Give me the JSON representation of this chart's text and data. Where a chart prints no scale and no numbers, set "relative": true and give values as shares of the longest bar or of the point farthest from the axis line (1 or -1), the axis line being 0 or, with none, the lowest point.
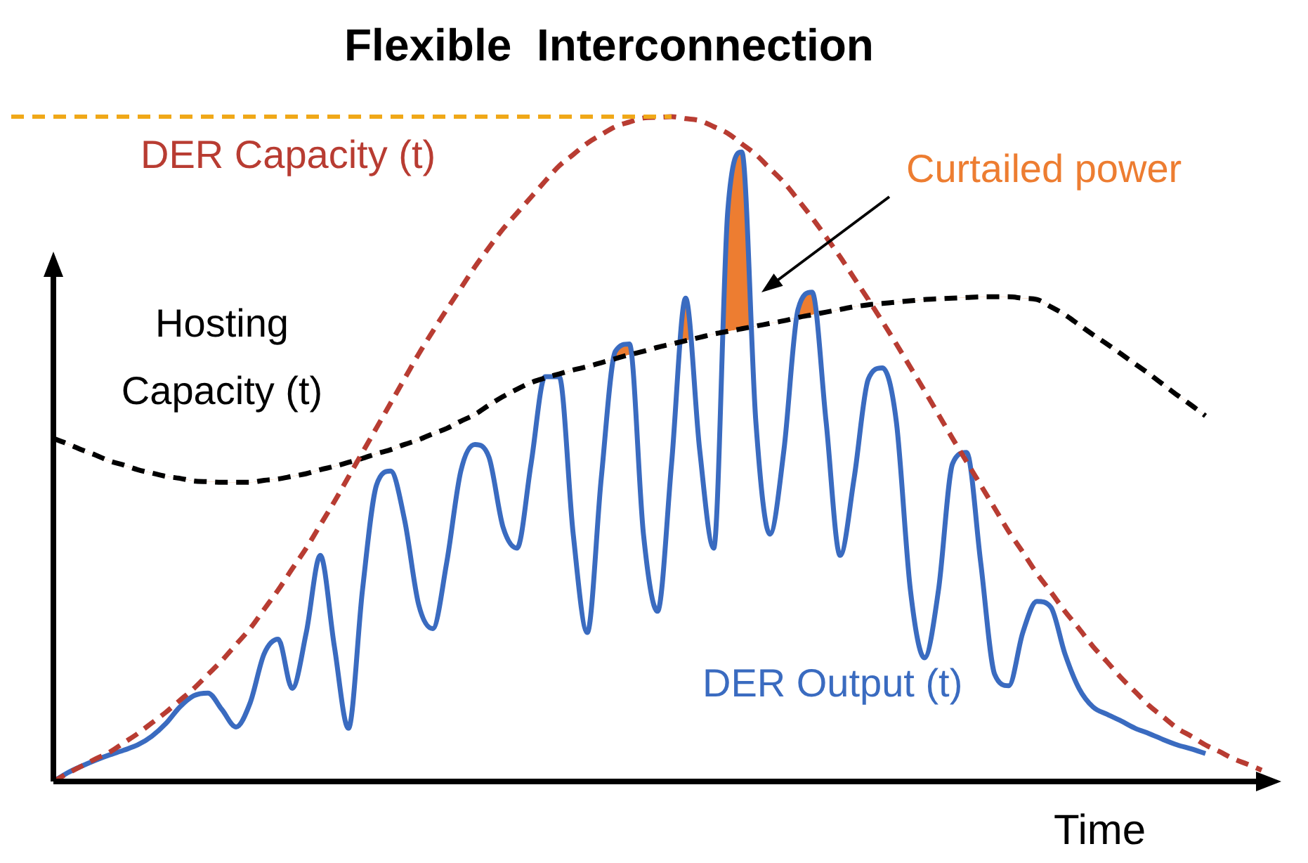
{
  "chart_data": {
    "type": "line",
    "title": "Flexible  Interconnection",
    "xlabel": "Time",
    "relative": true,
    "legend": false,
    "marker": "none",
    "categories": [
      null,
      null,
      null,
      null,
      null,
      null,
      null,
      null,
      null,
      null,
      null,
      null,
      null,
      null,
      null,
      null,
      null,
      null,
      null,
      null,
      null,
      null,
      null,
      null,
      null,
      null,
      null,
      null,
      null,
      null,
      null,
      null,
      null,
      null,
      null,
      null,
      null,
      null,
      null,
      null,
      null,
      null,
      null,
      null,
      null,
      null,
      null,
      null,
      null,
      null,
      null,
      null,
      null,
      null,
      null,
      null,
      null,
      null,
      null,
      null,
      null,
      null,
      null,
      null,
      null,
      null,
      null,
      null,
      null,
      null,
      null,
      null,
      null,
      null,
      null,
      null,
      null,
      null,
      null,
      null,
      null,
      null,
      null,
      null,
      null,
      null,
      null
    ],
    "series": [
      {
        "name": "DER Capacity (t)",
        "color": "#b83c32",
        "line_style": "dashed",
        "values": [
          0,
          0.012,
          0.023,
          0.034,
          0.044,
          0.058,
          0.072,
          0.088,
          0.104,
          0.122,
          0.14,
          0.161,
          0.182,
          0.206,
          0.23,
          0.259,
          0.288,
          0.32,
          0.351,
          0.386,
          0.421,
          0.458,
          0.495,
          0.532,
          0.569,
          0.606,
          0.643,
          0.677,
          0.71,
          0.742,
          0.774,
          0.803,
          0.831,
          0.855,
          0.879,
          0.903,
          0.926,
          0.943,
          0.96,
          0.973,
          0.985,
          0.992,
          0.998,
          0.999,
          1,
          0.997,
          0.994,
          0.985,
          0.975,
          0.959,
          0.943,
          0.922,
          0.901,
          0.875,
          0.848,
          0.819,
          0.789,
          0.757,
          0.725,
          0.692,
          0.658,
          0.623,
          0.588,
          0.552,
          0.516,
          0.481,
          0.446,
          0.411,
          0.376,
          0.345,
          0.313,
          0.285,
          0.256,
          0.23,
          0.203,
          0.18,
          0.156,
          0.135,
          0.114,
          0.097,
          0.08,
          0.068,
          0.055,
          0.045,
          0.034,
          0.026,
          0.017
        ]
      },
      {
        "name": "Hosting Capacity (t)",
        "color": "#000000",
        "line_style": "dashed",
        "values": [
          0.516,
          0.508,
          0.499,
          0.491,
          0.482,
          0.476,
          0.469,
          0.464,
          0.459,
          0.456,
          0.452,
          0.451,
          0.45,
          0.45,
          0.45,
          0.453,
          0.455,
          0.459,
          0.463,
          0.469,
          0.474,
          0.48,
          0.486,
          0.493,
          0.499,
          0.507,
          0.514,
          0.523,
          0.531,
          0.542,
          0.552,
          0.566,
          0.579,
          0.59,
          0.6,
          0.607,
          0.613,
          0.619,
          0.624,
          0.63,
          0.636,
          0.642,
          0.647,
          0.653,
          0.658,
          0.663,
          0.668,
          0.673,
          0.677,
          0.681,
          0.685,
          0.689,
          0.693,
          0.698,
          0.702,
          0.706,
          0.71,
          0.714,
          0.717,
          0.719,
          0.721,
          0.723,
          0.725,
          0.726,
          0.727,
          0.728,
          0.729,
          0.729,
          0.729,
          0.727,
          0.725,
          0.714,
          0.702,
          0.687,
          0.672,
          0.658,
          0.643,
          0.628,
          0.613,
          0.597,
          0.581,
          0.566,
          0.55,
          null,
          null,
          null,
          null
        ]
      },
      {
        "name": "DER Output (t)",
        "color": "#3a6bc0",
        "line_style": "solid",
        "values": [
          0,
          0.013,
          0.023,
          0.032,
          0.04,
          0.047,
          0.055,
          0.068,
          0.087,
          0.112,
          0.129,
          0.133,
          0.108,
          0.082,
          0.118,
          0.192,
          0.214,
          0.14,
          0.224,
          0.34,
          0.203,
          0.08,
          0.288,
          0.446,
          0.467,
          0.393,
          0.266,
          0.23,
          0.33,
          0.467,
          0.507,
          0.488,
          0.383,
          0.351,
          0.478,
          0.609,
          0.609,
          0.372,
          0.224,
          0.457,
          0.647,
          0.658,
          0.372,
          0.256,
          0.478,
          0.727,
          0.499,
          0.351,
          0.858,
          0.947,
          0.541,
          0.372,
          0.499,
          0.71,
          0.736,
          0.541,
          0.34,
          0.457,
          0.605,
          0.622,
          0.541,
          0.288,
          0.186,
          0.288,
          0.478,
          0.495,
          0.33,
          0.161,
          0.144,
          0.224,
          0.271,
          0.262,
          0.192,
          0.14,
          0.112,
          0.101,
          0.091,
          0.08,
          0.072,
          0.063,
          0.055,
          0.049,
          0.042,
          null,
          null,
          null,
          null
        ]
      }
    ],
    "ref_lines": [
      {
        "axis": "y",
        "value": 1,
        "color": "#f0a818",
        "line_style": "dashed"
      }
    ],
    "annotations": [
      "Curtailed power"
    ]
  }
}
